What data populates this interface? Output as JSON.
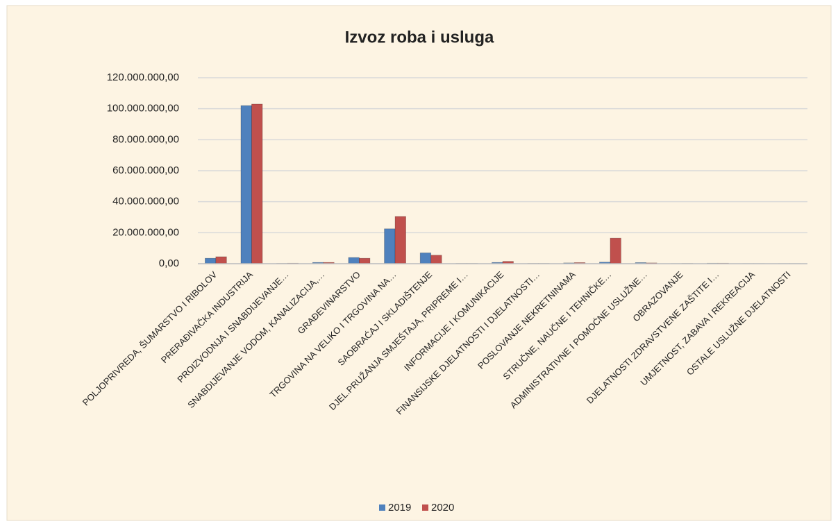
{
  "chart_data": {
    "type": "bar",
    "title": "Izvoz roba i usluga",
    "categories": [
      "POLJOPRIVREDA, ŠUMARSTVO I RIBOLOV",
      "PRERAĐIVAČKA INDUSTRIJA",
      "PROIZVODNJA I SNABDIJEVANJE…",
      "SNABDIJEVANJE VODOM, KANALIZACIJA,…",
      "GRAĐEVINARSTVO",
      "TRGOVINA NA VELIKO I TRGOVINA NA…",
      "SAOBRAĆAJ I SKLADIŠTENJE",
      "DJEL.PRUŽANJA SMJEŠTAJA, PRIPREME I…",
      "INFORMACIJE I KOMUNIKACIJE",
      "FINANSIJSKE DJELATNOSTI I DJELATNOSTI…",
      "POSLOVANJE NEKRETNINAMA",
      "STRUČNE, NAUČNE I TEHNIČKE…",
      "ADMINISTRATIVNE I POMOĆNE USLUŽNE…",
      "OBRAZOVANJE",
      "DJELATNOSTI ZDRAVSTVENE ZAŠTITE I…",
      "UMJETNOST, ZABAVA I REKREACIJA",
      "OSTALE USLUŽNE DJELATNOSTI"
    ],
    "series": [
      {
        "name": "2019",
        "color": "#4f81bd",
        "values": [
          3500000,
          102000000,
          200000,
          800000,
          4000000,
          22500000,
          7000000,
          200000,
          800000,
          200000,
          500000,
          1000000,
          700000,
          100000,
          300000,
          100000,
          100000
        ]
      },
      {
        "name": "2020",
        "color": "#c0504d",
        "values": [
          4500000,
          103000000,
          300000,
          800000,
          3500000,
          30500000,
          5500000,
          200000,
          1500000,
          200000,
          700000,
          16500000,
          500000,
          200000,
          300000,
          100000,
          100000
        ]
      }
    ],
    "ylim": [
      0,
      120000000
    ],
    "yticks": [
      {
        "value": 0,
        "label": "0,00"
      },
      {
        "value": 20000000,
        "label": "20.000.000,00"
      },
      {
        "value": 40000000,
        "label": "40.000.000,00"
      },
      {
        "value": 60000000,
        "label": "60.000.000,00"
      },
      {
        "value": 80000000,
        "label": "80.000.000,00"
      },
      {
        "value": 100000000,
        "label": "100.000.000,00"
      },
      {
        "value": 120000000,
        "label": "120.000.000,00"
      }
    ],
    "grid": true,
    "legend": "bottom"
  }
}
